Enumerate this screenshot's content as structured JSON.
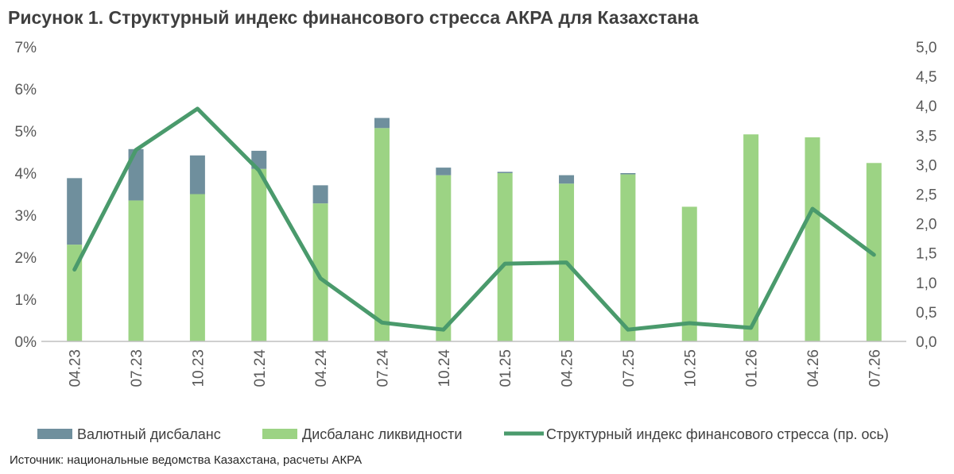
{
  "chart_data": {
    "type": "bar",
    "title": "Рисунок 1. Структурный индекс финансового стресса АКРА для Казахстана",
    "source": "Источник: национальные ведомства Казахстана, расчеты АКРА",
    "categories": [
      "04.23",
      "07.23",
      "10.23",
      "01.24",
      "04.24",
      "07.24",
      "10.24",
      "01.25",
      "04.25",
      "07.25",
      "10.25",
      "01.26",
      "04.26",
      "07.26"
    ],
    "stacked": true,
    "series": [
      {
        "name": "Дисбаланс ликвидности",
        "type": "bar",
        "axis": "left",
        "color": "#9cd384",
        "values": [
          2.3,
          3.35,
          3.5,
          4.1,
          3.28,
          5.07,
          3.95,
          4.0,
          3.75,
          3.97,
          3.2,
          4.92,
          4.85,
          4.24
        ]
      },
      {
        "name": "Валютный дисбаланс",
        "type": "bar",
        "axis": "left",
        "color": "#6f8f9d",
        "values": [
          1.58,
          1.22,
          0.92,
          0.43,
          0.43,
          0.24,
          0.18,
          0.03,
          0.2,
          0.03,
          0.0,
          0.0,
          0.0,
          0.0
        ]
      },
      {
        "name": "Структурный индекс финансового стресса (пр. ось)",
        "type": "line",
        "axis": "right",
        "color": "#4a9a6c",
        "values": [
          1.22,
          3.25,
          3.95,
          2.9,
          1.07,
          0.32,
          0.2,
          1.32,
          1.34,
          0.2,
          0.31,
          0.23,
          2.25,
          1.47
        ]
      }
    ],
    "y_left": {
      "min": 0,
      "max": 7,
      "step": 1,
      "ticks": [
        "0%",
        "1%",
        "2%",
        "3%",
        "4%",
        "5%",
        "6%",
        "7%"
      ]
    },
    "y_right": {
      "min": 0,
      "max": 5,
      "step": 0.5,
      "ticks": [
        "0,0",
        "0,5",
        "1,0",
        "1,5",
        "2,0",
        "2,5",
        "3,0",
        "3,5",
        "4,0",
        "4,5",
        "5,0"
      ]
    },
    "legend": {
      "placement": "bottom",
      "order": [
        "Валютный дисбаланс",
        "Дисбаланс ликвидности",
        "Структурный индекс финансового стресса (пр. ось)"
      ]
    },
    "grid": false
  }
}
